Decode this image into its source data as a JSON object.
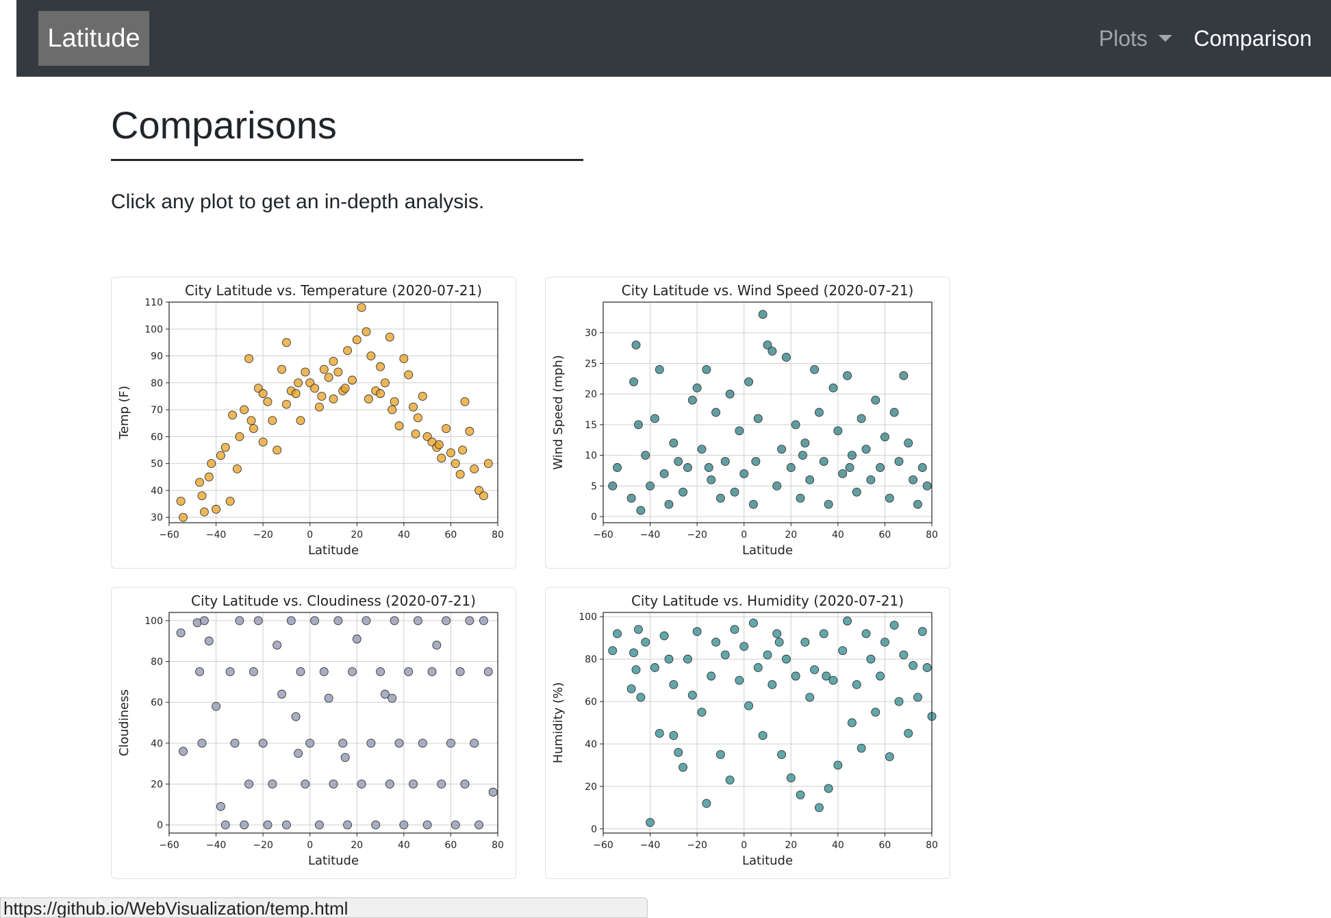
{
  "navbar": {
    "brand": "Latitude",
    "plots_label": "Plots",
    "comparison_label": "Comparison"
  },
  "main": {
    "title": "Comparisons",
    "intro": "Click any plot to get an in-depth analysis."
  },
  "status_bar": {
    "url": "https://github.io/WebVisualization/temp.html"
  },
  "chart_data": [
    {
      "id": "temperature",
      "type": "scatter",
      "title": "City Latitude vs. Temperature (2020-07-21)",
      "xlabel": "Latitude",
      "ylabel": "Temp (F)",
      "xlim": [
        -60,
        80
      ],
      "ylim": [
        28,
        110
      ],
      "xticks": [
        -60,
        -40,
        -20,
        0,
        20,
        40,
        60,
        80
      ],
      "yticks": [
        30,
        40,
        50,
        60,
        70,
        80,
        90,
        100,
        110
      ],
      "grid": true,
      "color": "#e8a020",
      "points": [
        [
          -55,
          36
        ],
        [
          -54,
          30
        ],
        [
          -47,
          43
        ],
        [
          -46,
          38
        ],
        [
          -45,
          32
        ],
        [
          -43,
          45
        ],
        [
          -42,
          50
        ],
        [
          -40,
          33
        ],
        [
          -38,
          53
        ],
        [
          -36,
          56
        ],
        [
          -34,
          36
        ],
        [
          -33,
          68
        ],
        [
          -31,
          48
        ],
        [
          -30,
          60
        ],
        [
          -28,
          70
        ],
        [
          -26,
          89
        ],
        [
          -24,
          63
        ],
        [
          -22,
          78
        ],
        [
          -20,
          76
        ],
        [
          -18,
          73
        ],
        [
          -16,
          66
        ],
        [
          -14,
          55
        ],
        [
          -12,
          85
        ],
        [
          -10,
          95
        ],
        [
          -8,
          77
        ],
        [
          -6,
          76
        ],
        [
          -4,
          66
        ],
        [
          -2,
          84
        ],
        [
          0,
          80
        ],
        [
          2,
          78
        ],
        [
          4,
          71
        ],
        [
          6,
          85
        ],
        [
          8,
          82
        ],
        [
          10,
          88
        ],
        [
          12,
          84
        ],
        [
          14,
          77
        ],
        [
          16,
          92
        ],
        [
          18,
          81
        ],
        [
          20,
          96
        ],
        [
          22,
          108
        ],
        [
          24,
          99
        ],
        [
          26,
          90
        ],
        [
          28,
          77
        ],
        [
          30,
          86
        ],
        [
          32,
          80
        ],
        [
          34,
          97
        ],
        [
          36,
          73
        ],
        [
          38,
          64
        ],
        [
          40,
          89
        ],
        [
          42,
          83
        ],
        [
          44,
          71
        ],
        [
          46,
          67
        ],
        [
          48,
          75
        ],
        [
          50,
          60
        ],
        [
          52,
          58
        ],
        [
          54,
          56
        ],
        [
          56,
          52
        ],
        [
          58,
          63
        ],
        [
          60,
          54
        ],
        [
          62,
          50
        ],
        [
          64,
          46
        ],
        [
          66,
          73
        ],
        [
          68,
          62
        ],
        [
          70,
          48
        ],
        [
          72,
          40
        ],
        [
          74,
          38
        ],
        [
          76,
          50
        ],
        [
          -20,
          58
        ],
        [
          -10,
          72
        ],
        [
          5,
          75
        ],
        [
          15,
          78
        ],
        [
          25,
          74
        ],
        [
          35,
          70
        ],
        [
          45,
          61
        ],
        [
          55,
          57
        ],
        [
          65,
          55
        ],
        [
          -25,
          66
        ],
        [
          -5,
          80
        ],
        [
          10,
          74
        ],
        [
          30,
          76
        ]
      ]
    },
    {
      "id": "wind-speed",
      "type": "scatter",
      "title": "City Latitude vs. Wind Speed (2020-07-21)",
      "xlabel": "Latitude",
      "ylabel": "Wind Speed (mph)",
      "xlim": [
        -60,
        80
      ],
      "ylim": [
        -1,
        35
      ],
      "xticks": [
        -60,
        -40,
        -20,
        0,
        20,
        40,
        60,
        80
      ],
      "yticks": [
        0,
        5,
        10,
        15,
        20,
        25,
        30
      ],
      "grid": true,
      "color": "#2e7d82",
      "points": [
        [
          -56,
          5
        ],
        [
          -54,
          8
        ],
        [
          -48,
          3
        ],
        [
          -47,
          22
        ],
        [
          -46,
          28
        ],
        [
          -45,
          15
        ],
        [
          -44,
          1
        ],
        [
          -42,
          10
        ],
        [
          -40,
          5
        ],
        [
          -38,
          16
        ],
        [
          -36,
          24
        ],
        [
          -34,
          7
        ],
        [
          -32,
          2
        ],
        [
          -30,
          12
        ],
        [
          -28,
          9
        ],
        [
          -26,
          4
        ],
        [
          -24,
          8
        ],
        [
          -22,
          19
        ],
        [
          -20,
          21
        ],
        [
          -18,
          11
        ],
        [
          -16,
          24
        ],
        [
          -14,
          6
        ],
        [
          -12,
          17
        ],
        [
          -10,
          3
        ],
        [
          -8,
          9
        ],
        [
          -6,
          20
        ],
        [
          -4,
          4
        ],
        [
          -2,
          14
        ],
        [
          0,
          7
        ],
        [
          2,
          22
        ],
        [
          4,
          2
        ],
        [
          6,
          16
        ],
        [
          8,
          33
        ],
        [
          10,
          28
        ],
        [
          12,
          27
        ],
        [
          14,
          5
        ],
        [
          16,
          11
        ],
        [
          18,
          26
        ],
        [
          20,
          8
        ],
        [
          22,
          15
        ],
        [
          24,
          3
        ],
        [
          26,
          12
        ],
        [
          28,
          6
        ],
        [
          30,
          24
        ],
        [
          32,
          17
        ],
        [
          34,
          9
        ],
        [
          36,
          2
        ],
        [
          38,
          21
        ],
        [
          40,
          14
        ],
        [
          42,
          7
        ],
        [
          44,
          23
        ],
        [
          46,
          10
        ],
        [
          48,
          4
        ],
        [
          50,
          16
        ],
        [
          52,
          11
        ],
        [
          54,
          6
        ],
        [
          56,
          19
        ],
        [
          58,
          8
        ],
        [
          60,
          13
        ],
        [
          62,
          3
        ],
        [
          64,
          17
        ],
        [
          66,
          9
        ],
        [
          68,
          23
        ],
        [
          70,
          12
        ],
        [
          72,
          6
        ],
        [
          74,
          2
        ],
        [
          76,
          8
        ],
        [
          78,
          5
        ],
        [
          -15,
          8
        ],
        [
          5,
          9
        ],
        [
          25,
          10
        ],
        [
          45,
          8
        ]
      ]
    },
    {
      "id": "cloudiness",
      "type": "scatter",
      "title": "City Latitude vs. Cloudiness (2020-07-21)",
      "xlabel": "Latitude",
      "ylabel": "Cloudiness",
      "xlim": [
        -60,
        80
      ],
      "ylim": [
        -4,
        104
      ],
      "xticks": [
        -60,
        -40,
        -20,
        0,
        20,
        40,
        60,
        80
      ],
      "yticks": [
        0,
        20,
        40,
        60,
        80,
        100
      ],
      "grid": true,
      "color": "#8c93b0",
      "points": [
        [
          -55,
          94
        ],
        [
          -54,
          36
        ],
        [
          -48,
          99
        ],
        [
          -47,
          75
        ],
        [
          -46,
          40
        ],
        [
          -45,
          100
        ],
        [
          -43,
          90
        ],
        [
          -40,
          58
        ],
        [
          -38,
          9
        ],
        [
          -36,
          0
        ],
        [
          -34,
          75
        ],
        [
          -32,
          40
        ],
        [
          -30,
          100
        ],
        [
          -28,
          0
        ],
        [
          -26,
          20
        ],
        [
          -24,
          75
        ],
        [
          -22,
          100
        ],
        [
          -20,
          40
        ],
        [
          -18,
          0
        ],
        [
          -16,
          20
        ],
        [
          -14,
          88
        ],
        [
          -12,
          64
        ],
        [
          -10,
          0
        ],
        [
          -8,
          100
        ],
        [
          -6,
          53
        ],
        [
          -4,
          75
        ],
        [
          -2,
          20
        ],
        [
          0,
          40
        ],
        [
          2,
          100
        ],
        [
          4,
          0
        ],
        [
          6,
          75
        ],
        [
          8,
          62
        ],
        [
          10,
          20
        ],
        [
          12,
          100
        ],
        [
          14,
          40
        ],
        [
          16,
          0
        ],
        [
          18,
          75
        ],
        [
          20,
          91
        ],
        [
          22,
          20
        ],
        [
          24,
          100
        ],
        [
          26,
          40
        ],
        [
          28,
          0
        ],
        [
          30,
          75
        ],
        [
          32,
          64
        ],
        [
          34,
          20
        ],
        [
          36,
          100
        ],
        [
          38,
          40
        ],
        [
          40,
          0
        ],
        [
          42,
          75
        ],
        [
          44,
          20
        ],
        [
          46,
          100
        ],
        [
          48,
          40
        ],
        [
          50,
          0
        ],
        [
          52,
          75
        ],
        [
          54,
          88
        ],
        [
          56,
          20
        ],
        [
          58,
          100
        ],
        [
          60,
          40
        ],
        [
          62,
          0
        ],
        [
          64,
          75
        ],
        [
          66,
          20
        ],
        [
          68,
          100
        ],
        [
          70,
          40
        ],
        [
          72,
          0
        ],
        [
          74,
          100
        ],
        [
          76,
          75
        ],
        [
          78,
          16
        ],
        [
          -5,
          35
        ],
        [
          15,
          33
        ],
        [
          35,
          62
        ]
      ]
    },
    {
      "id": "humidity",
      "type": "scatter",
      "title": "City Latitude vs. Humidity (2020-07-21)",
      "xlabel": "Latitude",
      "ylabel": "Humidity (%)",
      "xlim": [
        -60,
        80
      ],
      "ylim": [
        -2,
        102
      ],
      "xticks": [
        -60,
        -40,
        -20,
        0,
        20,
        40,
        60,
        80
      ],
      "yticks": [
        0,
        20,
        40,
        60,
        80,
        100
      ],
      "grid": true,
      "color": "#2e8a8e",
      "points": [
        [
          -56,
          84
        ],
        [
          -54,
          92
        ],
        [
          -48,
          66
        ],
        [
          -47,
          83
        ],
        [
          -46,
          75
        ],
        [
          -45,
          94
        ],
        [
          -44,
          62
        ],
        [
          -42,
          88
        ],
        [
          -40,
          3
        ],
        [
          -38,
          76
        ],
        [
          -36,
          45
        ],
        [
          -34,
          91
        ],
        [
          -32,
          80
        ],
        [
          -30,
          68
        ],
        [
          -28,
          36
        ],
        [
          -26,
          29
        ],
        [
          -24,
          80
        ],
        [
          -22,
          63
        ],
        [
          -20,
          93
        ],
        [
          -18,
          55
        ],
        [
          -16,
          12
        ],
        [
          -14,
          72
        ],
        [
          -12,
          88
        ],
        [
          -10,
          35
        ],
        [
          -8,
          82
        ],
        [
          -6,
          23
        ],
        [
          -4,
          94
        ],
        [
          -2,
          70
        ],
        [
          0,
          86
        ],
        [
          2,
          58
        ],
        [
          4,
          97
        ],
        [
          6,
          76
        ],
        [
          8,
          44
        ],
        [
          10,
          82
        ],
        [
          12,
          68
        ],
        [
          14,
          92
        ],
        [
          16,
          35
        ],
        [
          18,
          80
        ],
        [
          20,
          24
        ],
        [
          22,
          72
        ],
        [
          24,
          16
        ],
        [
          26,
          88
        ],
        [
          28,
          62
        ],
        [
          30,
          75
        ],
        [
          32,
          10
        ],
        [
          34,
          92
        ],
        [
          36,
          19
        ],
        [
          38,
          70
        ],
        [
          40,
          30
        ],
        [
          42,
          84
        ],
        [
          44,
          98
        ],
        [
          46,
          50
        ],
        [
          48,
          68
        ],
        [
          50,
          38
        ],
        [
          52,
          92
        ],
        [
          54,
          80
        ],
        [
          56,
          55
        ],
        [
          58,
          72
        ],
        [
          60,
          88
        ],
        [
          62,
          34
        ],
        [
          64,
          96
        ],
        [
          66,
          60
        ],
        [
          68,
          82
        ],
        [
          70,
          45
        ],
        [
          72,
          77
        ],
        [
          74,
          62
        ],
        [
          76,
          93
        ],
        [
          78,
          76
        ],
        [
          80,
          53
        ],
        [
          -30,
          44
        ],
        [
          15,
          88
        ],
        [
          35,
          72
        ]
      ]
    }
  ]
}
